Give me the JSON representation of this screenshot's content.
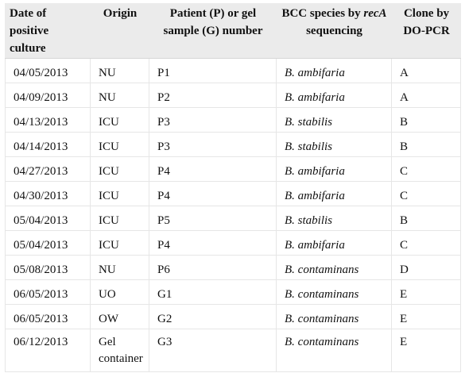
{
  "table": {
    "headers": {
      "date_l1": "Date of",
      "date_l2": "positive",
      "date_l3": "culture",
      "origin": "Origin",
      "patient_l1": "Patient (P) or gel",
      "patient_l2": "sample (G) number",
      "species_l1_pre": "BCC species by ",
      "species_l1_gene": "recA",
      "species_l2": "sequencing",
      "clone_l1": "Clone by",
      "clone_l2": "DO-PCR"
    },
    "rows": [
      {
        "date": "04/05/2013",
        "origin": "NU",
        "sample": "P1",
        "genus": "B.",
        "species": "ambifaria",
        "clone": "A"
      },
      {
        "date": "04/09/2013",
        "origin": "NU",
        "sample": "P2",
        "genus": "B.",
        "species": "ambifaria",
        "clone": "A"
      },
      {
        "date": "04/13/2013",
        "origin": "ICU",
        "sample": "P3",
        "genus": "B.",
        "species": "stabilis",
        "clone": "B"
      },
      {
        "date": "04/14/2013",
        "origin": "ICU",
        "sample": "P3",
        "genus": "B.",
        "species": "stabilis",
        "clone": "B"
      },
      {
        "date": "04/27/2013",
        "origin": "ICU",
        "sample": "P4",
        "genus": "B.",
        "species": "ambifaria",
        "clone": "C"
      },
      {
        "date": "04/30/2013",
        "origin": "ICU",
        "sample": "P4",
        "genus": "B.",
        "species": "ambifaria",
        "clone": "C"
      },
      {
        "date": "05/04/2013",
        "origin": "ICU",
        "sample": "P5",
        "genus": "B.",
        "species": "stabilis",
        "clone": "B"
      },
      {
        "date": "05/04/2013",
        "origin": "ICU",
        "sample": "P4",
        "genus": "B.",
        "species": "ambifaria",
        "clone": "C"
      },
      {
        "date": "05/08/2013",
        "origin": "NU",
        "sample": "P6",
        "genus": "B.",
        "species": "contaminans",
        "clone": "D"
      },
      {
        "date": "06/05/2013",
        "origin": "UO",
        "sample": "G1",
        "genus": "B.",
        "species": "contaminans",
        "clone": "E"
      },
      {
        "date": "06/05/2013",
        "origin": "OW",
        "sample": "G2",
        "genus": "B.",
        "species": "contaminans",
        "clone": "E"
      },
      {
        "date": "06/12/2013",
        "origin_l1": "Gel",
        "origin_l2": "container",
        "sample": "G3",
        "genus": "B.",
        "species": "contaminans",
        "clone": "E"
      }
    ]
  }
}
